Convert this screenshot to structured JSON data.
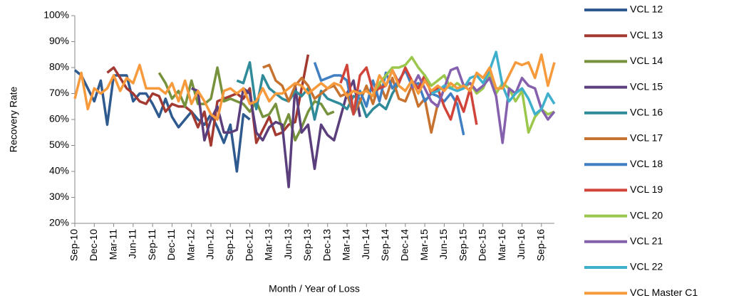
{
  "chart_data": {
    "type": "line",
    "y_label": "Recovery Rate",
    "x_label": "Month / Year of Loss",
    "categories": [
      "Sep-10",
      null,
      null,
      "Dec-10",
      null,
      null,
      "Mar-11",
      null,
      null,
      "Jun-11",
      null,
      null,
      "Sep-11",
      null,
      null,
      "Dec-11",
      null,
      null,
      "Mar-12",
      null,
      null,
      "Jun-12",
      null,
      null,
      "Sep-12",
      null,
      null,
      "Dec-12",
      null,
      null,
      "Mar-13",
      null,
      null,
      "Jun-13",
      null,
      null,
      "Sep-13",
      null,
      null,
      "Dec-13",
      null,
      null,
      "Mar-14",
      null,
      null,
      "Jun-14",
      null,
      null,
      "Sep-14",
      null,
      null,
      "Dec-14",
      null,
      null,
      "Mar-15",
      null,
      null,
      "Jun-15",
      null,
      null,
      "Sep-15",
      null,
      null,
      "Dec-15",
      null,
      null,
      "Mar-16",
      null,
      null,
      "Jun-16",
      null,
      null,
      "Sep-16",
      null,
      null
    ],
    "ylim": [
      20,
      100
    ],
    "yticks": [
      {
        "value": 20,
        "label": "20%"
      },
      {
        "value": 30,
        "label": "30%"
      },
      {
        "value": 40,
        "label": "40%"
      },
      {
        "value": 50,
        "label": "50%"
      },
      {
        "value": 60,
        "label": "60%"
      },
      {
        "value": 70,
        "label": "70%"
      },
      {
        "value": 80,
        "label": "80%"
      },
      {
        "value": 90,
        "label": "90%"
      },
      {
        "value": 100,
        "label": "100%"
      }
    ],
    "grid": false,
    "legend": "right",
    "series": [
      {
        "name": "VCL 12",
        "color": "#2e5a8f",
        "values": [
          79,
          77,
          72,
          67,
          75,
          58,
          77,
          77,
          77,
          67,
          70,
          70,
          66,
          61,
          68,
          61,
          57,
          60,
          63,
          60,
          58,
          62,
          57,
          51,
          58,
          40,
          62,
          60,
          null,
          null,
          null,
          null,
          null,
          null,
          null,
          null,
          null,
          null,
          null,
          null,
          null,
          null,
          null,
          null,
          null,
          null,
          null,
          null,
          null,
          null,
          null,
          null,
          null,
          null,
          null,
          null,
          null,
          null,
          null,
          null,
          null,
          null,
          null,
          null,
          null,
          null,
          null,
          null,
          null,
          null,
          null,
          null,
          null,
          null,
          null
        ]
      },
      {
        "name": "VCL 13",
        "color": "#a33a32",
        "values": [
          null,
          null,
          null,
          null,
          null,
          78,
          80,
          76,
          72,
          70,
          67,
          66,
          70,
          69,
          63,
          66,
          65,
          65,
          63,
          57,
          63,
          50,
          67,
          68,
          69,
          70,
          68,
          72,
          51,
          56,
          61,
          54,
          55,
          58,
          59,
          72,
          85,
          null,
          null,
          null,
          null,
          null,
          null,
          null,
          null,
          null,
          null,
          null,
          null,
          null,
          null,
          null,
          null,
          null,
          null,
          null,
          null,
          null,
          null,
          null,
          null,
          null,
          null,
          null,
          null,
          null,
          null,
          null,
          null,
          null,
          null,
          null,
          null,
          null,
          null
        ]
      },
      {
        "name": "VCL 14",
        "color": "#77923c",
        "values": [
          null,
          null,
          null,
          null,
          null,
          null,
          null,
          null,
          null,
          null,
          null,
          null,
          null,
          78,
          74,
          68,
          71,
          65,
          75,
          66,
          66,
          68,
          80,
          67,
          68,
          67,
          66,
          63,
          67,
          61,
          62,
          66,
          56,
          62,
          52,
          57,
          63,
          67,
          66,
          62,
          63,
          null,
          null,
          null,
          null,
          null,
          null,
          null,
          null,
          null,
          null,
          null,
          null,
          null,
          null,
          null,
          null,
          null,
          null,
          null,
          null,
          null,
          null,
          null,
          null,
          null,
          null,
          null,
          null,
          null,
          null,
          null,
          null,
          null,
          null
        ]
      },
      {
        "name": "VCL 15",
        "color": "#5b3f7c",
        "values": [
          null,
          null,
          null,
          null,
          null,
          null,
          null,
          null,
          null,
          null,
          null,
          null,
          null,
          null,
          null,
          null,
          null,
          null,
          72,
          71,
          52,
          60,
          65,
          55,
          55,
          56,
          72,
          70,
          55,
          52,
          57,
          59,
          58,
          34,
          73,
          55,
          58,
          41,
          58,
          54,
          52,
          61,
          70,
          75,
          61,
          null,
          null,
          null,
          null,
          null,
          null,
          null,
          null,
          null,
          null,
          null,
          null,
          null,
          null,
          null,
          null,
          null,
          null,
          null,
          null,
          null,
          null,
          null,
          null,
          null,
          null,
          null,
          null,
          null,
          null
        ]
      },
      {
        "name": "VCL 16",
        "color": "#2f8a9a",
        "values": [
          null,
          null,
          null,
          null,
          null,
          null,
          null,
          null,
          null,
          null,
          null,
          null,
          null,
          null,
          null,
          null,
          null,
          null,
          null,
          null,
          null,
          null,
          null,
          null,
          null,
          75,
          74,
          82,
          64,
          77,
          72,
          70,
          68,
          67,
          71,
          69,
          72,
          60,
          71,
          68,
          67,
          66,
          64,
          69,
          68,
          61,
          64,
          66,
          64,
          70,
          74,
          null,
          null,
          null,
          null,
          null,
          null,
          null,
          null,
          null,
          null,
          null,
          null,
          null,
          null,
          null,
          null,
          null,
          null,
          null,
          null,
          null,
          null,
          null,
          null
        ]
      },
      {
        "name": "VCL 17",
        "color": "#c8722f",
        "values": [
          null,
          null,
          null,
          null,
          null,
          null,
          null,
          null,
          null,
          null,
          null,
          null,
          null,
          null,
          null,
          null,
          null,
          null,
          null,
          null,
          null,
          null,
          null,
          null,
          null,
          null,
          null,
          null,
          null,
          80,
          81,
          75,
          73,
          67,
          73,
          76,
          73,
          68,
          70,
          72,
          73,
          69,
          70,
          62,
          67,
          73,
          66,
          74,
          68,
          76,
          68,
          67,
          73,
          65,
          68,
          55,
          66,
          null,
          null,
          null,
          null,
          null,
          null,
          null,
          null,
          null,
          null,
          null,
          null,
          null,
          null,
          null,
          null,
          null,
          null
        ]
      },
      {
        "name": "VCL 18",
        "color": "#3f7fc2",
        "values": [
          null,
          null,
          null,
          null,
          null,
          null,
          null,
          null,
          null,
          null,
          null,
          null,
          null,
          null,
          null,
          null,
          null,
          null,
          null,
          null,
          null,
          null,
          null,
          null,
          null,
          null,
          null,
          null,
          null,
          null,
          null,
          null,
          null,
          null,
          null,
          null,
          null,
          82,
          75,
          76,
          77,
          77,
          75,
          62,
          71,
          65,
          75,
          67,
          78,
          72,
          75,
          79,
          73,
          74,
          67,
          70,
          69,
          67,
          70,
          66,
          54,
          null,
          null,
          null,
          null,
          null,
          null,
          null,
          null,
          null,
          null,
          null,
          null,
          null,
          null
        ]
      },
      {
        "name": "VCL 19",
        "color": "#d0443a",
        "values": [
          null,
          null,
          null,
          null,
          null,
          null,
          null,
          null,
          null,
          null,
          null,
          null,
          null,
          null,
          null,
          null,
          null,
          null,
          null,
          null,
          null,
          null,
          null,
          null,
          null,
          null,
          null,
          null,
          null,
          null,
          null,
          null,
          null,
          null,
          null,
          null,
          null,
          null,
          null,
          null,
          null,
          74,
          81,
          62,
          77,
          80,
          71,
          72,
          73,
          79,
          74,
          80,
          75,
          72,
          77,
          70,
          72,
          65,
          60,
          69,
          63,
          72,
          58,
          null,
          null,
          null,
          null,
          null,
          null,
          null,
          null,
          null,
          null,
          null,
          null
        ]
      },
      {
        "name": "VCL 20",
        "color": "#9bc74c",
        "values": [
          null,
          null,
          null,
          null,
          null,
          null,
          null,
          null,
          null,
          null,
          null,
          null,
          null,
          null,
          null,
          null,
          null,
          null,
          null,
          null,
          null,
          null,
          null,
          null,
          null,
          null,
          null,
          null,
          null,
          null,
          null,
          null,
          null,
          null,
          null,
          null,
          null,
          null,
          null,
          null,
          null,
          null,
          null,
          null,
          null,
          null,
          70,
          74,
          77,
          80,
          80,
          81,
          84,
          80,
          77,
          73,
          75,
          77,
          72,
          74,
          72,
          74,
          70,
          72,
          78,
          70,
          74,
          72,
          67,
          71,
          55,
          61,
          64,
          62,
          63
        ]
      },
      {
        "name": "VCL 21",
        "color": "#8460ad",
        "values": [
          null,
          null,
          null,
          null,
          null,
          null,
          null,
          null,
          null,
          null,
          null,
          null,
          null,
          null,
          null,
          null,
          null,
          null,
          null,
          null,
          null,
          null,
          null,
          null,
          null,
          null,
          null,
          null,
          null,
          null,
          null,
          null,
          null,
          null,
          null,
          null,
          null,
          null,
          null,
          null,
          null,
          null,
          null,
          null,
          null,
          null,
          null,
          null,
          null,
          null,
          null,
          null,
          72,
          77,
          72,
          67,
          65,
          72,
          79,
          80,
          73,
          74,
          71,
          73,
          76,
          69,
          51,
          72,
          70,
          76,
          73,
          72,
          64,
          60,
          63
        ]
      },
      {
        "name": "VCL 22",
        "color": "#3fb0cc",
        "values": [
          null,
          null,
          null,
          null,
          null,
          null,
          null,
          null,
          null,
          null,
          null,
          null,
          null,
          null,
          null,
          null,
          null,
          null,
          null,
          null,
          null,
          null,
          null,
          null,
          null,
          null,
          null,
          null,
          null,
          null,
          null,
          null,
          null,
          null,
          null,
          null,
          null,
          null,
          null,
          null,
          null,
          null,
          null,
          null,
          null,
          null,
          null,
          null,
          null,
          null,
          null,
          null,
          null,
          null,
          null,
          70,
          71,
          73,
          72,
          71,
          72,
          76,
          77,
          74,
          79,
          86,
          73,
          67,
          70,
          72,
          68,
          62,
          64,
          70,
          66
        ]
      },
      {
        "name": "VCL Master C1",
        "color": "#f79a3c",
        "values": [
          68,
          78,
          64,
          72,
          70,
          72,
          77,
          71,
          76,
          74,
          81,
          72,
          72,
          72,
          70,
          74,
          67,
          75,
          66,
          71,
          67,
          62,
          60,
          71,
          72,
          70,
          72,
          66,
          67,
          72,
          67,
          70,
          70,
          72,
          74,
          73,
          70,
          72,
          74,
          72,
          74,
          73,
          69,
          71,
          70,
          71,
          69,
          77,
          73,
          79,
          73,
          71,
          75,
          70,
          75,
          71,
          73,
          71,
          74,
          72,
          73,
          71,
          78,
          76,
          80,
          72,
          72,
          77,
          82,
          81,
          82,
          76,
          85,
          73,
          82
        ]
      }
    ]
  }
}
